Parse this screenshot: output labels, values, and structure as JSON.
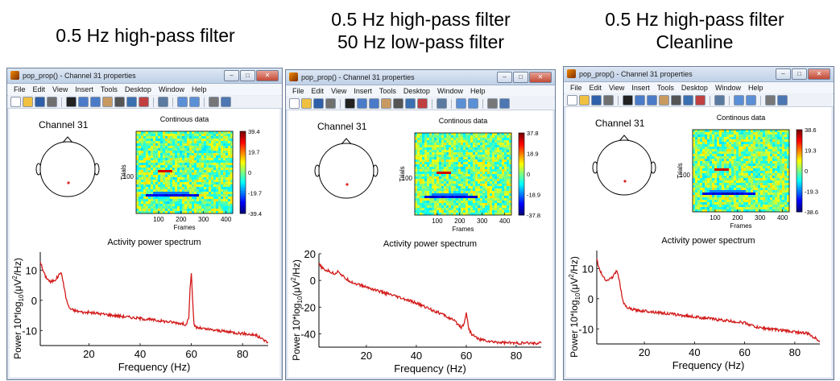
{
  "panel_titles": [
    [
      "0.5 Hz high-pass filter"
    ],
    [
      "0.5 Hz high-pass filter",
      "50 Hz low-pass filter"
    ],
    [
      "0.5 Hz high-pass filter",
      "Cleanline"
    ]
  ],
  "window": {
    "title": "pop_prop() - Channel 31 properties",
    "menu": [
      "File",
      "Edit",
      "View",
      "Insert",
      "Tools",
      "Desktop",
      "Window",
      "Help"
    ],
    "toolbar_icons": [
      "new-file-icon",
      "open-file-icon",
      "save-icon",
      "print-icon",
      "separator",
      "pointer-icon",
      "zoom-in-icon",
      "zoom-out-icon",
      "pan-icon",
      "rotate-icon",
      "data-cursor-icon",
      "brush-icon",
      "separator",
      "link-icon",
      "separator",
      "colorbar-icon",
      "legend-icon",
      "separator",
      "hide-plot-tools-icon",
      "show-plot-tools-icon"
    ],
    "buttons": {
      "minimize": "–",
      "maximize": "□",
      "close": "✕"
    }
  },
  "channel_label": "Channel 31",
  "continuous_title": "Continous data",
  "trials_label": "Trials",
  "trials_tick": "100",
  "frames_label": "Frames",
  "frames_ticks": [
    "100",
    "200",
    "300",
    "400"
  ],
  "spectrum_title": "Activity power spectrum",
  "spectrum_ylabel": "Power 10*log10(μV²/Hz)",
  "spectrum_ylabel_parts": [
    "Power 10*log",
    "10",
    "(μV",
    "2",
    "/Hz)"
  ],
  "spectrum_xlabel": "Frequency (Hz)",
  "colors": {
    "accent_line": "#d21a1a",
    "electrode": "#e02020"
  },
  "chart_data": [
    {
      "type": "heatmap",
      "title": "Continous data",
      "xlabel": "Frames",
      "ylabel": "Trials",
      "xticks": [
        100,
        200,
        300,
        400
      ],
      "yticks": [
        100
      ],
      "colorbar_ticks": [
        "39.4",
        "19.7",
        "0",
        "-19.7",
        "-39.4"
      ],
      "clim": [
        -39.4,
        39.4
      ]
    },
    {
      "type": "line",
      "title": "Activity power spectrum",
      "xlabel": "Frequency (Hz)",
      "ylabel": "Power 10*log10(μV²/Hz)",
      "xlim": [
        1,
        90
      ],
      "ylim": [
        -15,
        16
      ],
      "yticks": [
        "10",
        "0",
        "-10"
      ],
      "xticks": [
        "20",
        "40",
        "60",
        "80"
      ],
      "x": [
        1,
        2,
        3,
        4,
        5,
        6,
        7,
        8,
        9,
        10,
        11,
        12,
        13,
        15,
        18,
        20,
        25,
        30,
        35,
        40,
        45,
        50,
        55,
        58,
        59,
        59.5,
        60,
        60.5,
        61,
        62,
        65,
        70,
        75,
        80,
        85,
        88,
        90
      ],
      "y": [
        13,
        10,
        8,
        7,
        6,
        6.5,
        7,
        8,
        9.5,
        6,
        1,
        -2,
        -3,
        -3.5,
        -4,
        -4,
        -4.5,
        -5,
        -5.5,
        -6,
        -6.5,
        -7,
        -7.5,
        -8,
        -6,
        4,
        9,
        0,
        -8,
        -9,
        -9.5,
        -10,
        -10.5,
        -11,
        -11.5,
        -13,
        -14
      ]
    },
    {
      "type": "heatmap",
      "title": "Continous data",
      "xlabel": "Frames",
      "ylabel": "Trials",
      "xticks": [
        100,
        200,
        300,
        400
      ],
      "yticks": [
        100
      ],
      "colorbar_ticks": [
        "37.8",
        "18.9",
        "0",
        "-18.9",
        "-37.8"
      ],
      "clim": [
        -37.8,
        37.8
      ]
    },
    {
      "type": "line",
      "title": "Activity power spectrum",
      "xlabel": "Frequency (Hz)",
      "ylabel": "Power 10*log10(μV²/Hz)",
      "xlim": [
        1,
        90
      ],
      "ylim": [
        -50,
        20
      ],
      "yticks": [
        "20",
        "0",
        "-20",
        "-40"
      ],
      "xticks": [
        "20",
        "40",
        "60",
        "80"
      ],
      "x": [
        1,
        2,
        3,
        5,
        7,
        9,
        10,
        12,
        15,
        20,
        25,
        30,
        35,
        40,
        45,
        50,
        55,
        58,
        59,
        60,
        61,
        62,
        65,
        70,
        75,
        80,
        85,
        90
      ],
      "y": [
        12,
        10,
        8,
        7,
        5,
        7,
        4,
        1,
        -2,
        -5,
        -8,
        -11,
        -14,
        -17,
        -21,
        -25,
        -30,
        -35,
        -33,
        -24,
        -36,
        -40,
        -44,
        -46,
        -46.5,
        -47,
        -47,
        -47
      ]
    },
    {
      "type": "heatmap",
      "title": "Continous data",
      "xlabel": "Frames",
      "ylabel": "Trials",
      "xticks": [
        100,
        200,
        300,
        400
      ],
      "yticks": [
        100
      ],
      "colorbar_ticks": [
        "38.6",
        "19.3",
        "0",
        "-19.3",
        "-38.6"
      ],
      "clim": [
        -38.6,
        38.6
      ]
    },
    {
      "type": "line",
      "title": "Activity power spectrum",
      "xlabel": "Frequency (Hz)",
      "ylabel": "Power 10*log10(μV²/Hz)",
      "xlim": [
        1,
        90
      ],
      "ylim": [
        -15,
        16
      ],
      "yticks": [
        "10",
        "0",
        "-10"
      ],
      "xticks": [
        "20",
        "40",
        "60",
        "80"
      ],
      "x": [
        1,
        2,
        3,
        4,
        5,
        6,
        7,
        8,
        9,
        10,
        11,
        12,
        13,
        15,
        18,
        20,
        25,
        30,
        35,
        40,
        45,
        50,
        55,
        60,
        65,
        70,
        75,
        80,
        85,
        88,
        90
      ],
      "y": [
        13,
        10,
        8,
        7,
        6,
        6.5,
        7,
        8,
        9.5,
        6,
        1,
        -2,
        -3,
        -3.5,
        -4,
        -4,
        -4.5,
        -5,
        -5.5,
        -6,
        -6.5,
        -7,
        -7.5,
        -8,
        -9.5,
        -10,
        -10.5,
        -11,
        -11.5,
        -13,
        -14
      ]
    }
  ]
}
